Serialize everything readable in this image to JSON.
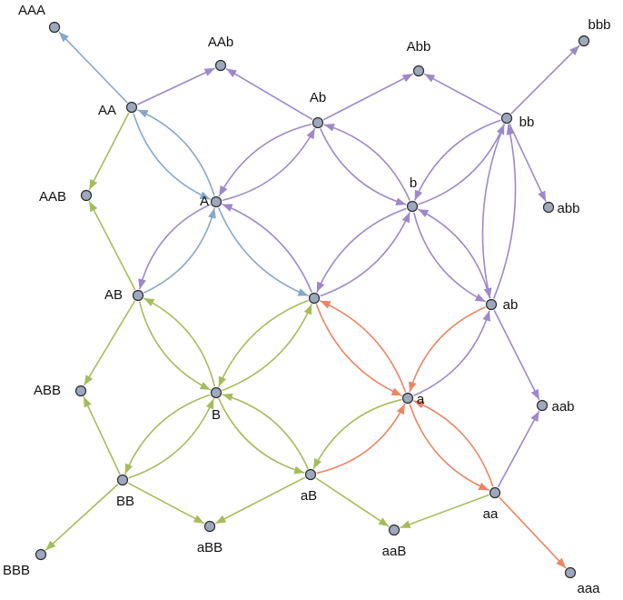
{
  "nodes": [
    "AAA",
    "AAb",
    "Abb",
    "bbb",
    "AA",
    "Ab",
    "bb",
    "AAB",
    "A",
    "b",
    "abb",
    "AB",
    "ab",
    "ABB",
    "B",
    "a",
    "aab",
    "BB",
    "aB",
    "aa",
    "BBB",
    "aBB",
    "aaB",
    "aaa"
  ]
}
